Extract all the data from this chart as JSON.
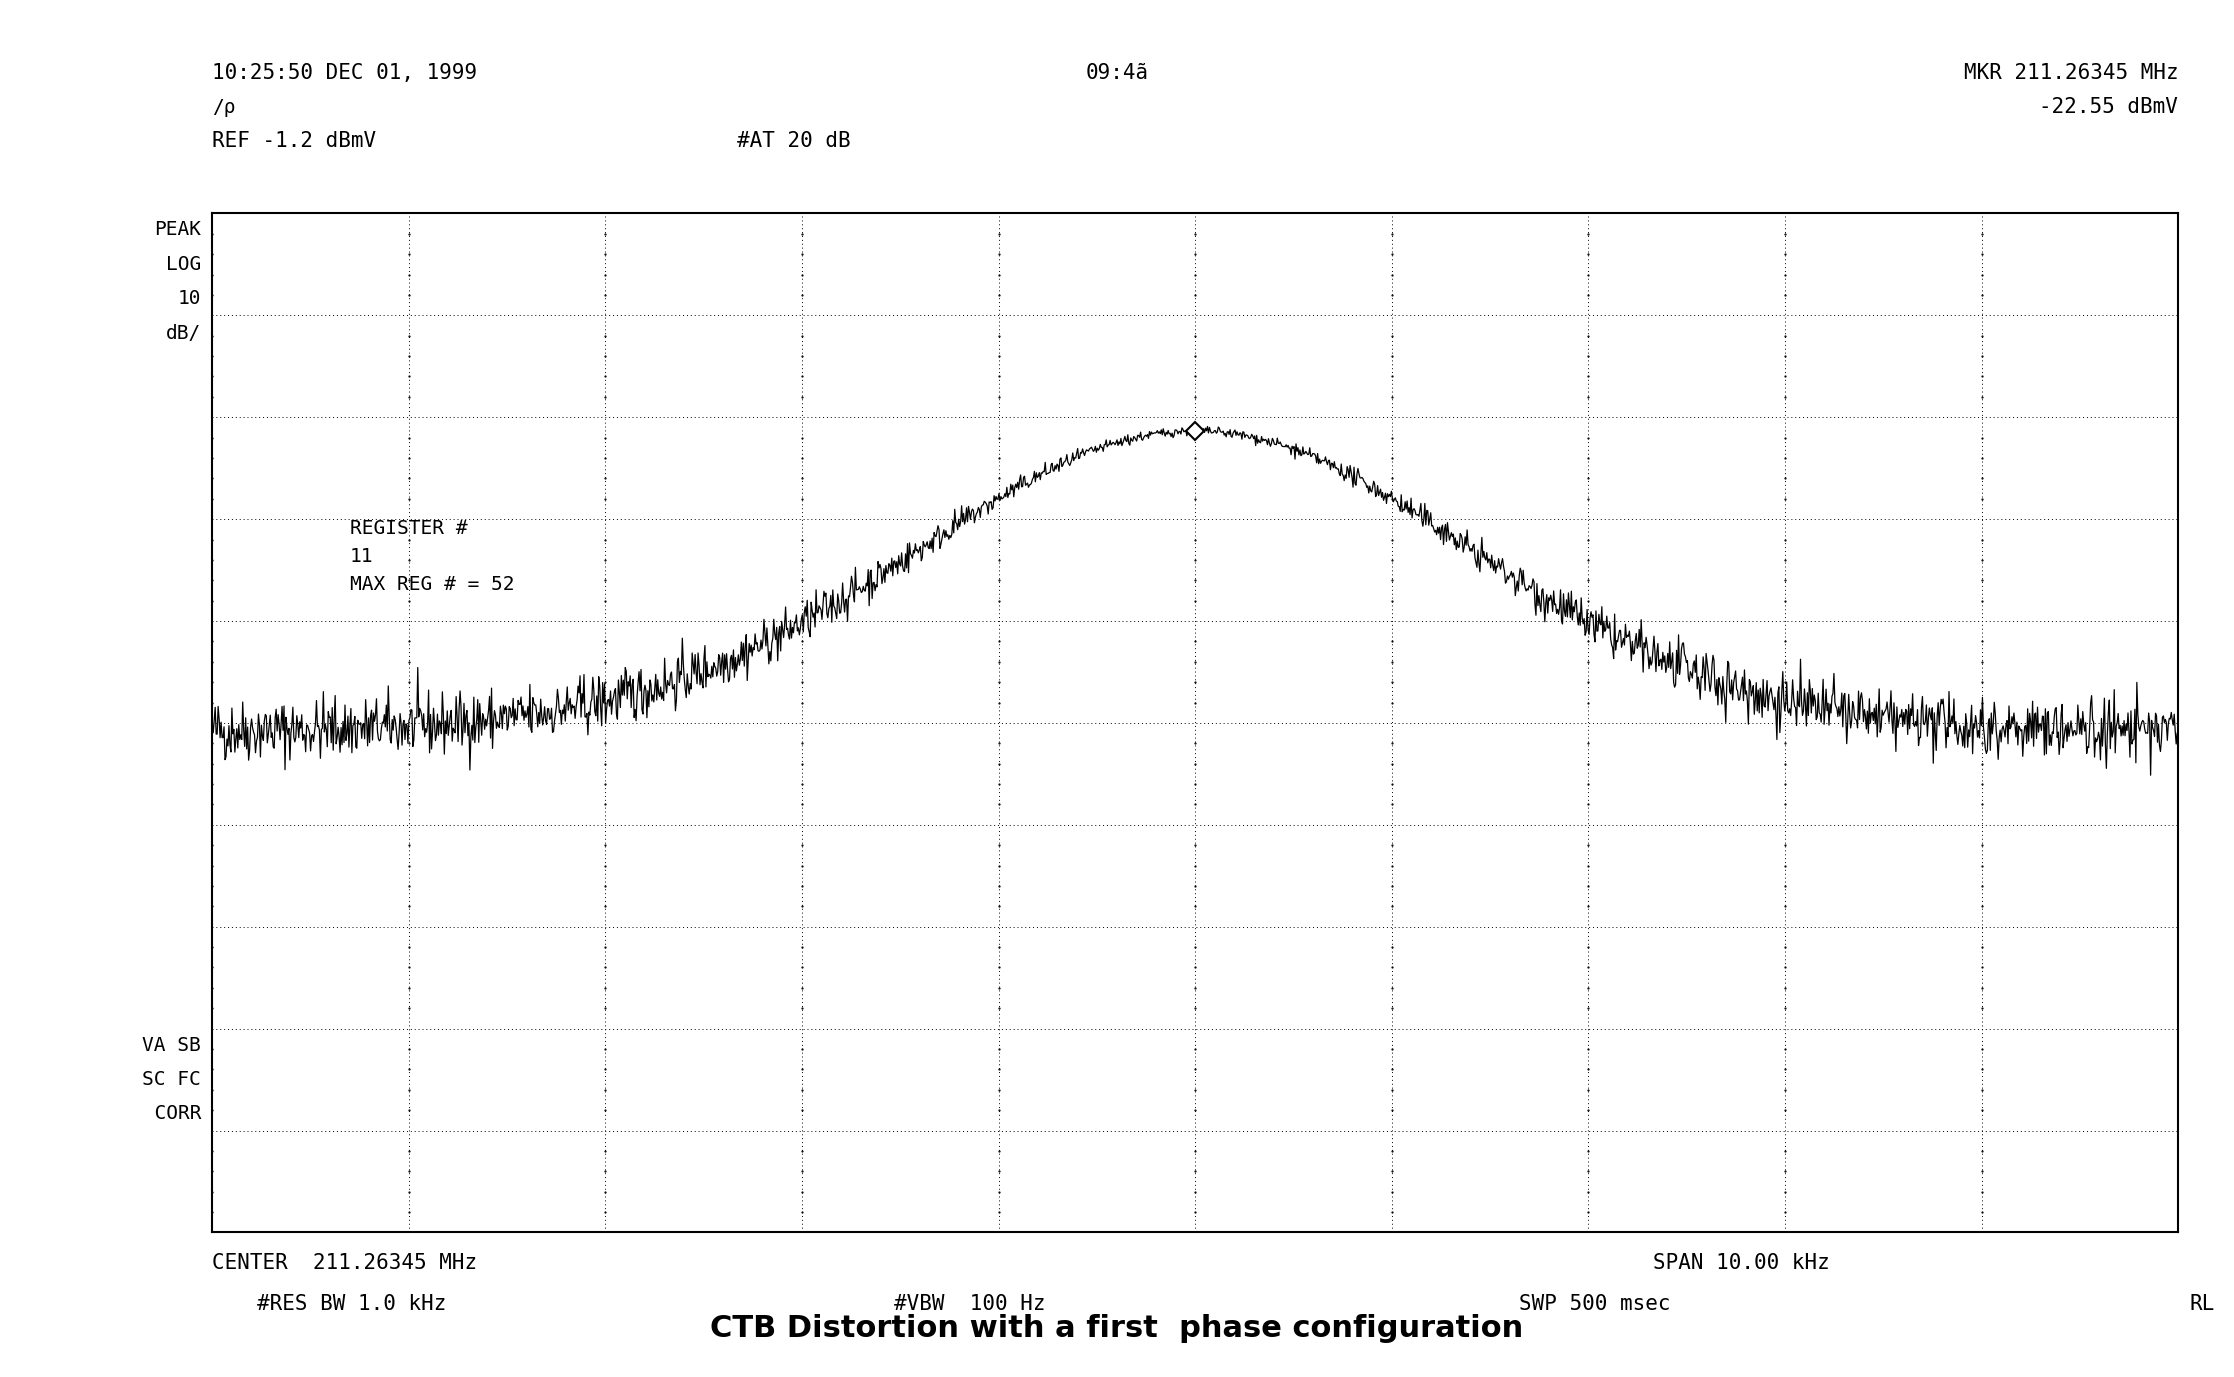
{
  "title": "CTB Distortion with a first  phase configuration",
  "timestamp": "10:25:50 DEC 01, 1999",
  "mkr_freq": "MKR 211.26345 MHz",
  "mkr_val": "-22.55 dBmV",
  "ref_line": "REF -1.2 dBmV",
  "at_line": "#AT 20 dB",
  "time_center": "09:4ã",
  "register_text": "REGISTER #\n11\nMAX REG # = 52",
  "center_label": "CENTER  211.26345 MHz",
  "span_label": "SPAN 10.00 kHz",
  "res_bw_label": "#RES BW 1.0 kHz",
  "vbw_label": "#VBW  100 Hz",
  "swp_label": "SWP 500 msec",
  "rl_label": "RL",
  "bg_color": "#ffffff",
  "signal_color": "#000000",
  "ref_db": -1.2,
  "db_per_div": 10,
  "n_divs_main": 8,
  "n_divs_lower": 2,
  "peak_db": -22.55,
  "noise_floor_db": -52.0,
  "signal_sigma": 1.4,
  "n_points": 2000,
  "font_size_mono": 15,
  "font_size_title": 22,
  "font_mono": "monospace"
}
